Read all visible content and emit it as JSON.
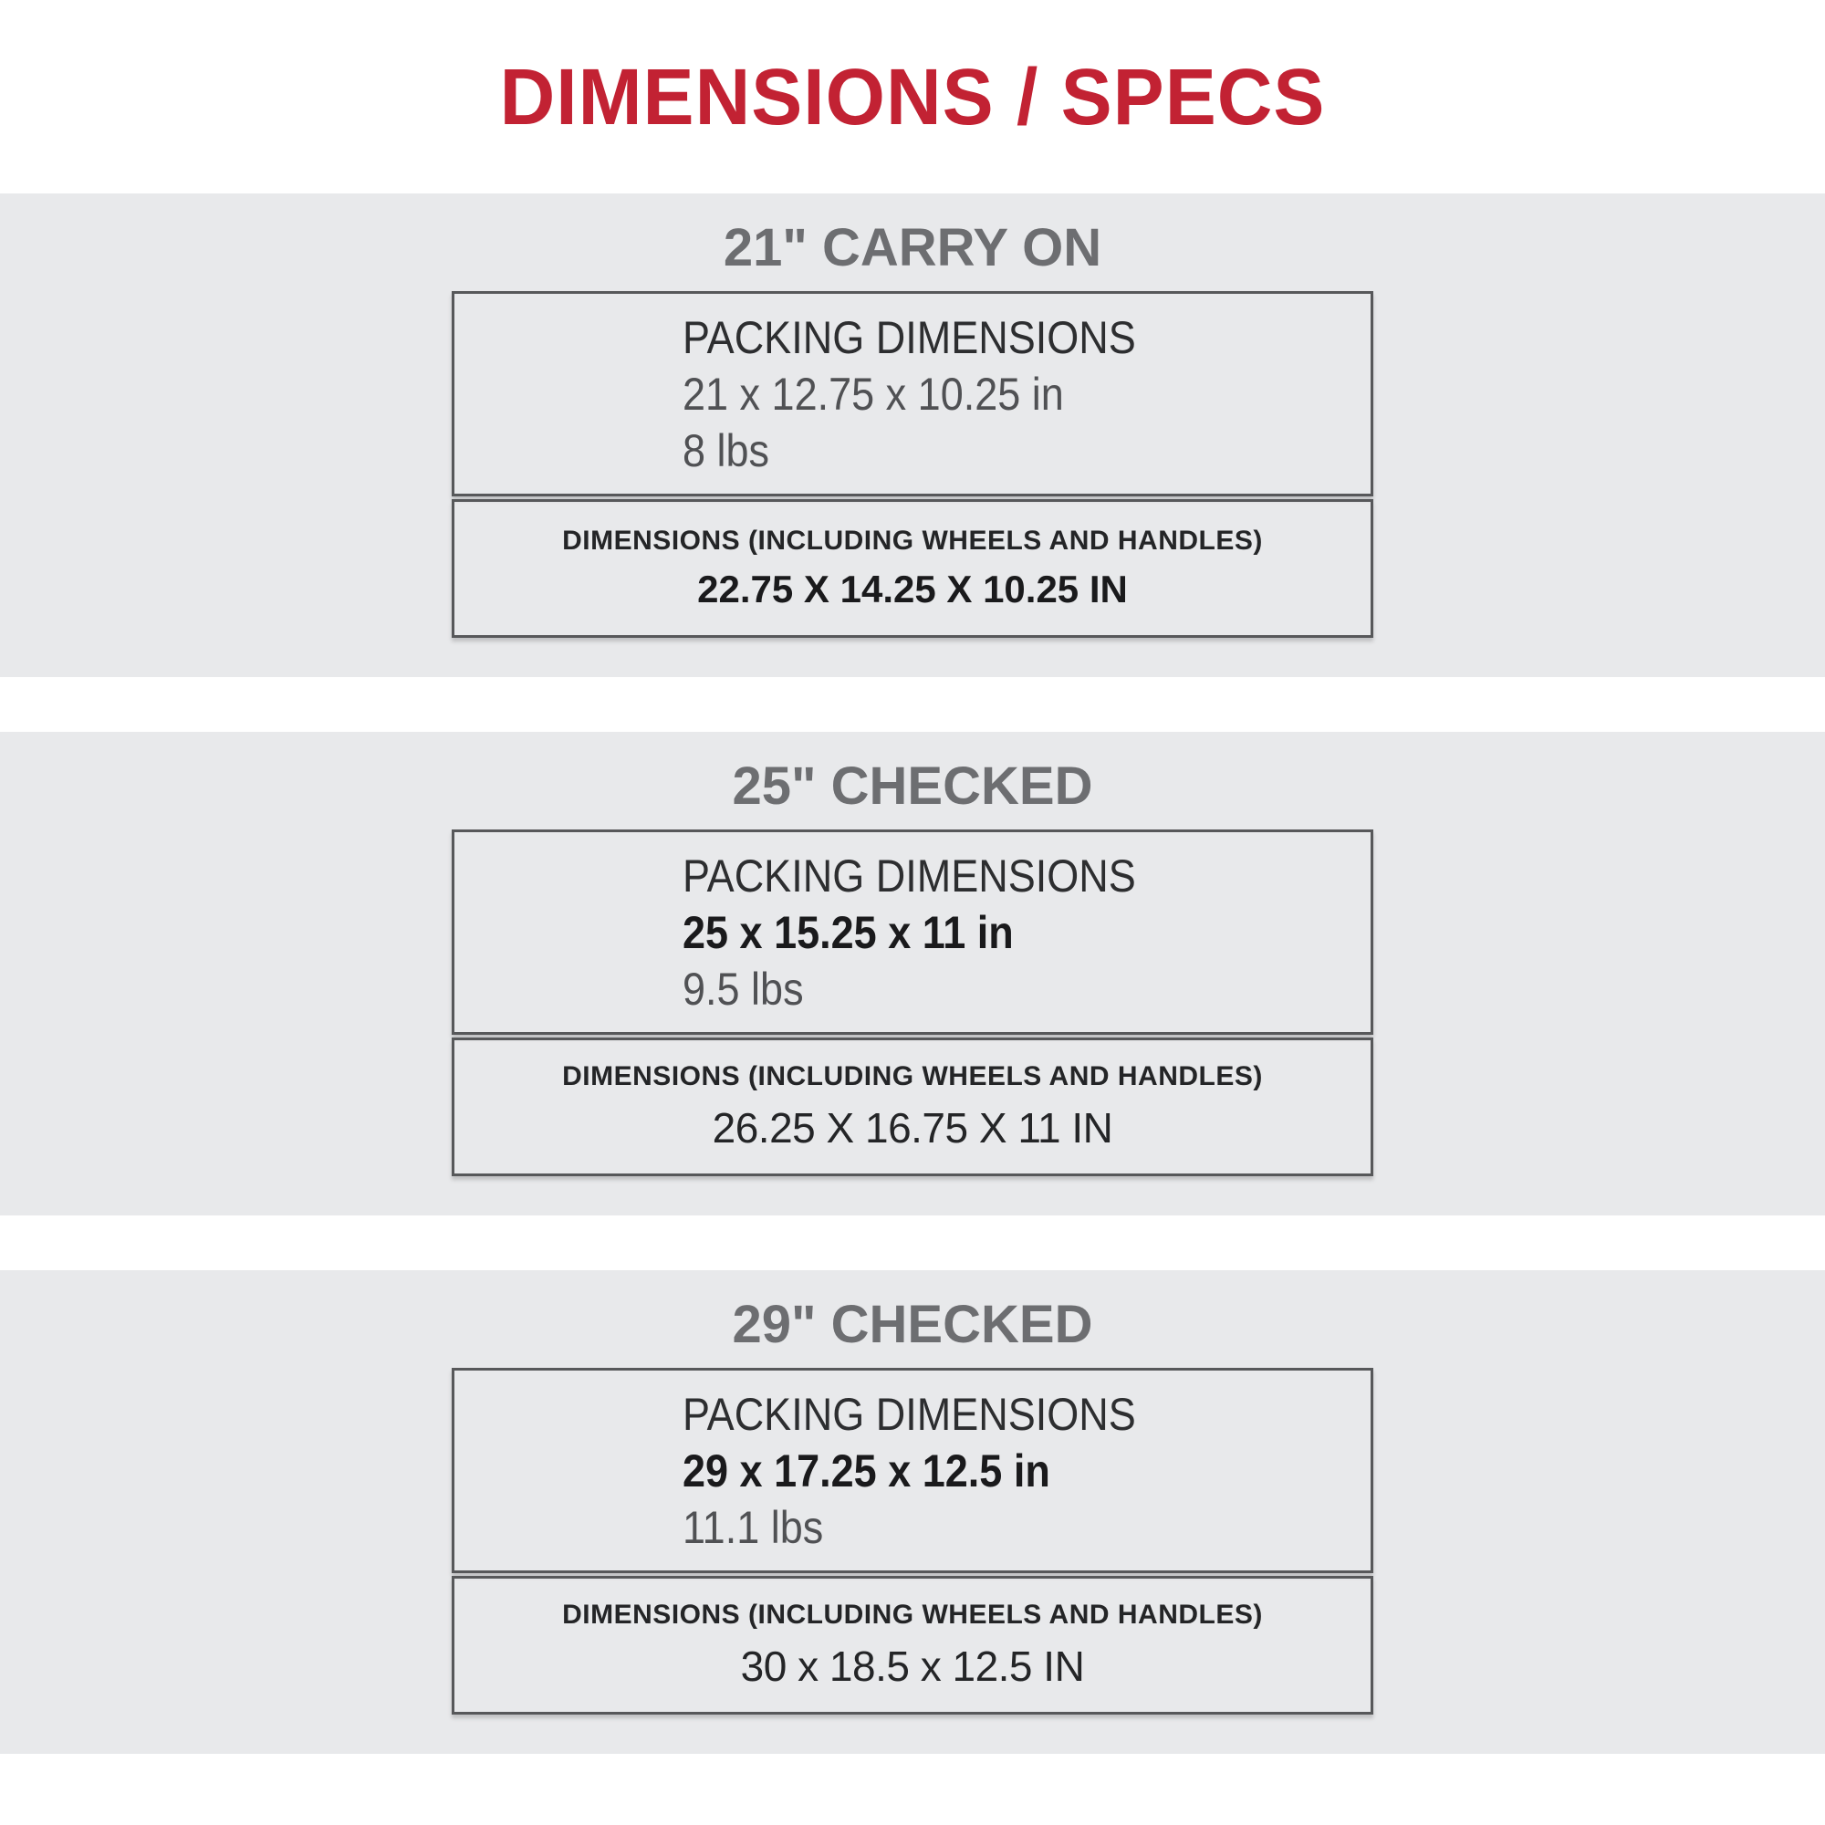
{
  "page": {
    "title": "DIMENSIONS / SPECS"
  },
  "colors": {
    "accent_red": "#c22233",
    "band_background_gray": "#e8e9eb",
    "section_header_gray": "#6d6e71",
    "box_border_gray": "#57585a"
  },
  "sections": [
    {
      "header": "21\" CARRY ON",
      "packing": {
        "label": "PACKING DIMENSIONS",
        "dimensions": "21 x 12.75 x 10.25 in",
        "weight": "8 lbs",
        "dims_class": "packing-line"
      },
      "overall": {
        "label": "DIMENSIONS (INCLUDING WHEELS AND HANDLES)",
        "value": "22.75 X 14.25 X 10.25 IN",
        "value_class": "overall-value"
      }
    },
    {
      "header": "25\" CHECKED",
      "packing": {
        "label": "PACKING DIMENSIONS",
        "dimensions": "25 x 15.25 x 11 in",
        "weight": "9.5 lbs",
        "dims_class": "packing-line dims-bold"
      },
      "overall": {
        "label": "DIMENSIONS (INCLUDING WHEELS AND HANDLES)",
        "value": "26.25 X 16.75 X 11 IN",
        "value_class": "overall-value value-cond"
      }
    },
    {
      "header": "29\" CHECKED",
      "packing": {
        "label": "PACKING DIMENSIONS",
        "dimensions": "29 x 17.25 x 12.5 in",
        "weight": "11.1 lbs",
        "dims_class": "packing-line dims-bold"
      },
      "overall": {
        "label": "DIMENSIONS (INCLUDING WHEELS AND HANDLES)",
        "value": "30 x 18.5 x 12.5 IN",
        "value_class": "overall-value value-cond"
      }
    }
  ]
}
